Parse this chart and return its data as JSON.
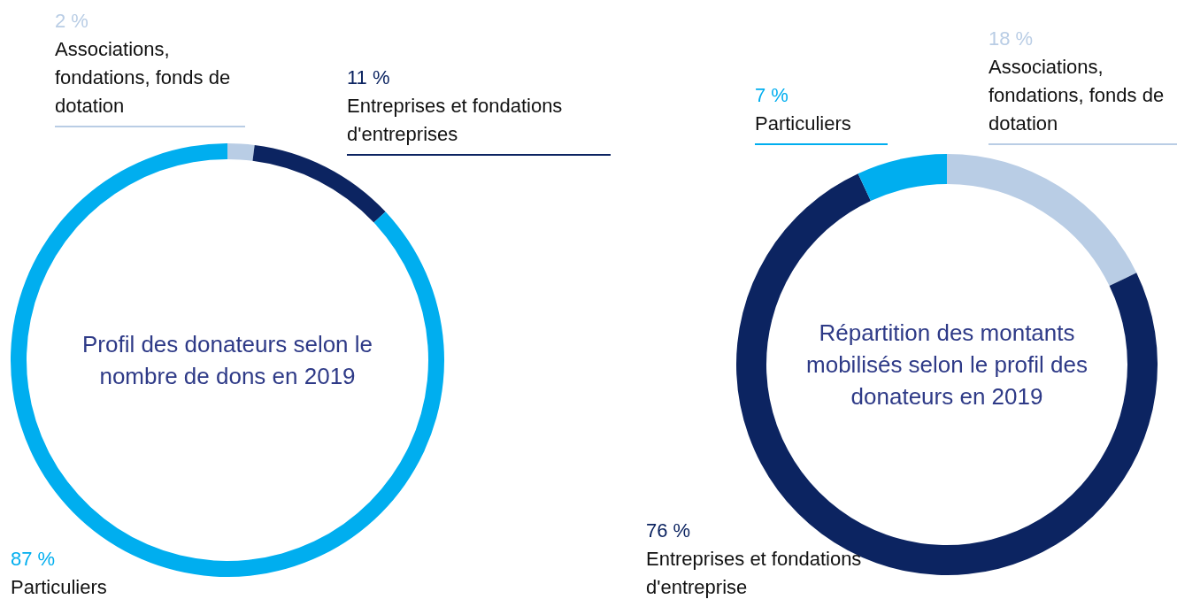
{
  "chart_data": [
    {
      "type": "donut",
      "title": "Profil des donateurs selon le nombre de dons en 2019",
      "categories": [
        "Associations, fondations, fonds de dotation",
        "Entreprises et fondations d'entreprises",
        "Particuliers"
      ],
      "values": [
        2,
        11,
        87
      ],
      "colors": [
        "#b9cde5",
        "#0c2461",
        "#00aeef"
      ],
      "value_labels": [
        "2 %",
        "11 %",
        "87 %"
      ],
      "legend": false
    },
    {
      "type": "donut",
      "title": "Répartition des montants mobilisés selon le profil des donateurs en 2019",
      "categories": [
        "Associations, fondations, fonds de dotation",
        "Entreprises et fondations d'entreprise",
        "Particuliers"
      ],
      "values": [
        18,
        76,
        7
      ],
      "colors": [
        "#b9cde5",
        "#0c2461",
        "#00aeef"
      ],
      "value_labels": [
        "18 %",
        "76 %",
        "7 %"
      ],
      "legend": false
    }
  ]
}
